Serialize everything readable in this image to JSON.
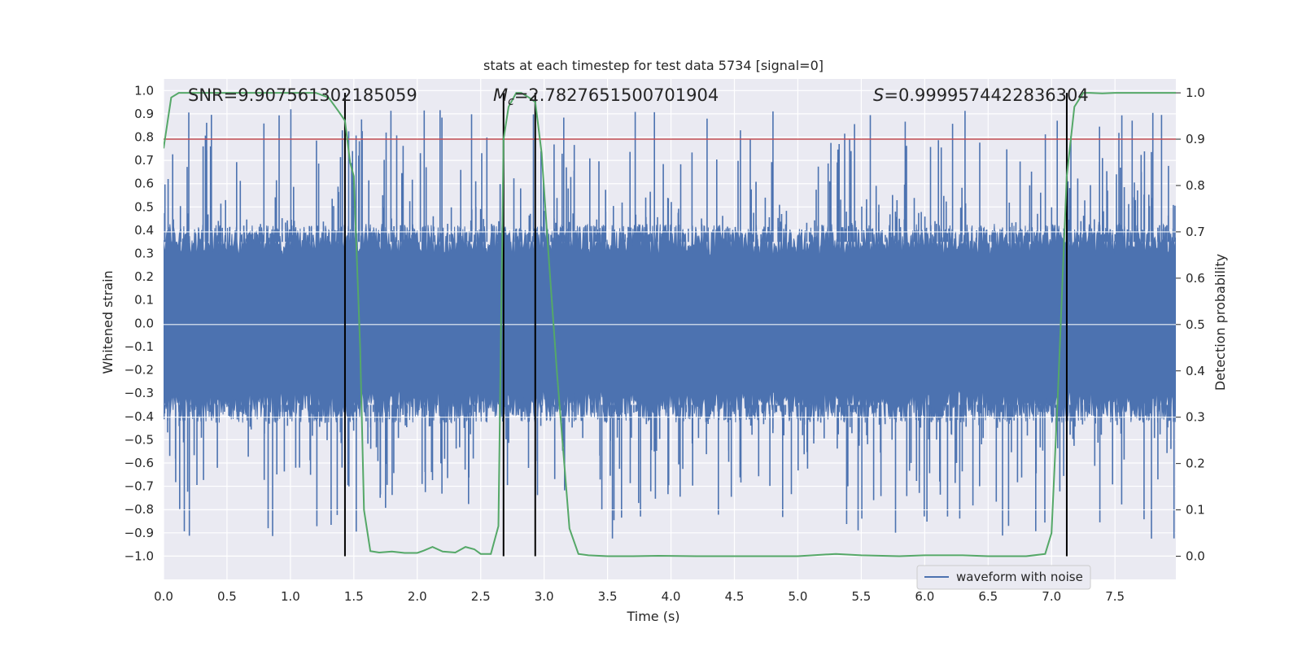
{
  "chart_data": {
    "type": "line",
    "title": "stats at each timestep for test data 5734 [signal=0]",
    "xlabel": "Time (s)",
    "ylabel_left": "Whitened strain",
    "ylabel_right": "Detection probability",
    "xlim": [
      0.0,
      7.98
    ],
    "ylim_left": [
      -1.1,
      1.05
    ],
    "ylim_right": [
      -0.05,
      1.03
    ],
    "x_ticks": [
      "0.0",
      "0.5",
      "1.0",
      "1.5",
      "2.0",
      "2.5",
      "3.0",
      "3.5",
      "4.0",
      "4.5",
      "5.0",
      "5.5",
      "6.0",
      "6.5",
      "7.0",
      "7.5"
    ],
    "x_tick_values": [
      0.0,
      0.5,
      1.0,
      1.5,
      2.0,
      2.5,
      3.0,
      3.5,
      4.0,
      4.5,
      5.0,
      5.5,
      6.0,
      6.5,
      7.0,
      7.5
    ],
    "y_left_ticks": [
      "1.0",
      "0.9",
      "0.8",
      "0.7",
      "0.6",
      "0.5",
      "0.4",
      "0.3",
      "0.2",
      "0.1",
      "0.0",
      "−0.1",
      "−0.2",
      "−0.3",
      "−0.4",
      "−0.5",
      "−0.6",
      "−0.7",
      "−0.8",
      "−0.9",
      "−1.0"
    ],
    "y_left_tick_values": [
      1.0,
      0.9,
      0.8,
      0.7,
      0.6,
      0.5,
      0.4,
      0.3,
      0.2,
      0.1,
      0.0,
      -0.1,
      -0.2,
      -0.3,
      -0.4,
      -0.5,
      -0.6,
      -0.7,
      -0.8,
      -0.9,
      -1.0
    ],
    "y_right_ticks": [
      "1.0",
      "0.9",
      "0.8",
      "0.7",
      "0.6",
      "0.5",
      "0.4",
      "0.3",
      "0.2",
      "0.1",
      "0.0"
    ],
    "y_right_tick_values": [
      1.0,
      0.9,
      0.8,
      0.7,
      0.6,
      0.5,
      0.4,
      0.3,
      0.2,
      0.1,
      0.0
    ],
    "annotations": {
      "snr": "SNR=9.907561302185059",
      "mc_symbol": "M",
      "mc_sub": "c",
      "mc_value": "=2.7827651500701904",
      "s_symbol": "S",
      "s_value": "=0.9999574422836304"
    },
    "threshold": 0.9,
    "vlines": [
      1.43,
      2.68,
      2.93,
      7.12
    ],
    "waveform": {
      "name": "waveform with noise",
      "color": "#4c72b0",
      "band_abs": 0.35,
      "num_samples": 1600
    },
    "probability": {
      "name": "detection probability",
      "color": "#55a868",
      "x": [
        0.0,
        0.06,
        0.12,
        0.3,
        0.6,
        0.9,
        1.2,
        1.3,
        1.38,
        1.43,
        1.47,
        1.5,
        1.55,
        1.58,
        1.63,
        1.7,
        1.8,
        1.9,
        2.0,
        2.05,
        2.12,
        2.2,
        2.3,
        2.38,
        2.45,
        2.5,
        2.58,
        2.64,
        2.68,
        2.72,
        2.78,
        2.82,
        2.88,
        2.93,
        2.98,
        3.03,
        3.1,
        3.2,
        3.27,
        3.35,
        3.5,
        3.7,
        3.9,
        4.2,
        4.5,
        4.8,
        5.0,
        5.3,
        5.5,
        5.8,
        6.0,
        6.3,
        6.5,
        6.8,
        6.95,
        7.0,
        7.05,
        7.12,
        7.18,
        7.25,
        7.3,
        7.4,
        7.5,
        7.98
      ],
      "y": [
        0.88,
        0.99,
        1.0,
        1.0,
        1.0,
        1.0,
        1.0,
        0.99,
        0.96,
        0.94,
        0.85,
        0.82,
        0.45,
        0.1,
        0.011,
        0.008,
        0.01,
        0.007,
        0.007,
        0.012,
        0.02,
        0.01,
        0.008,
        0.02,
        0.015,
        0.005,
        0.005,
        0.065,
        0.9,
        0.97,
        1.0,
        1.0,
        0.99,
        0.98,
        0.87,
        0.67,
        0.4,
        0.06,
        0.005,
        0.002,
        0.0,
        0.0,
        0.001,
        0.0,
        0.0,
        0.0,
        0.0,
        0.005,
        0.002,
        0.0,
        0.002,
        0.002,
        0.0,
        0.0,
        0.005,
        0.05,
        0.35,
        0.82,
        0.97,
        1.0,
        1.0,
        0.999,
        1.0,
        1.0
      ]
    },
    "colors": {
      "background": "#eaeaf2",
      "grid": "#ffffff",
      "threshold": "#c44e52",
      "vline": "#000000"
    },
    "legend": {
      "label": "waveform with noise",
      "position": "lower-right"
    }
  }
}
